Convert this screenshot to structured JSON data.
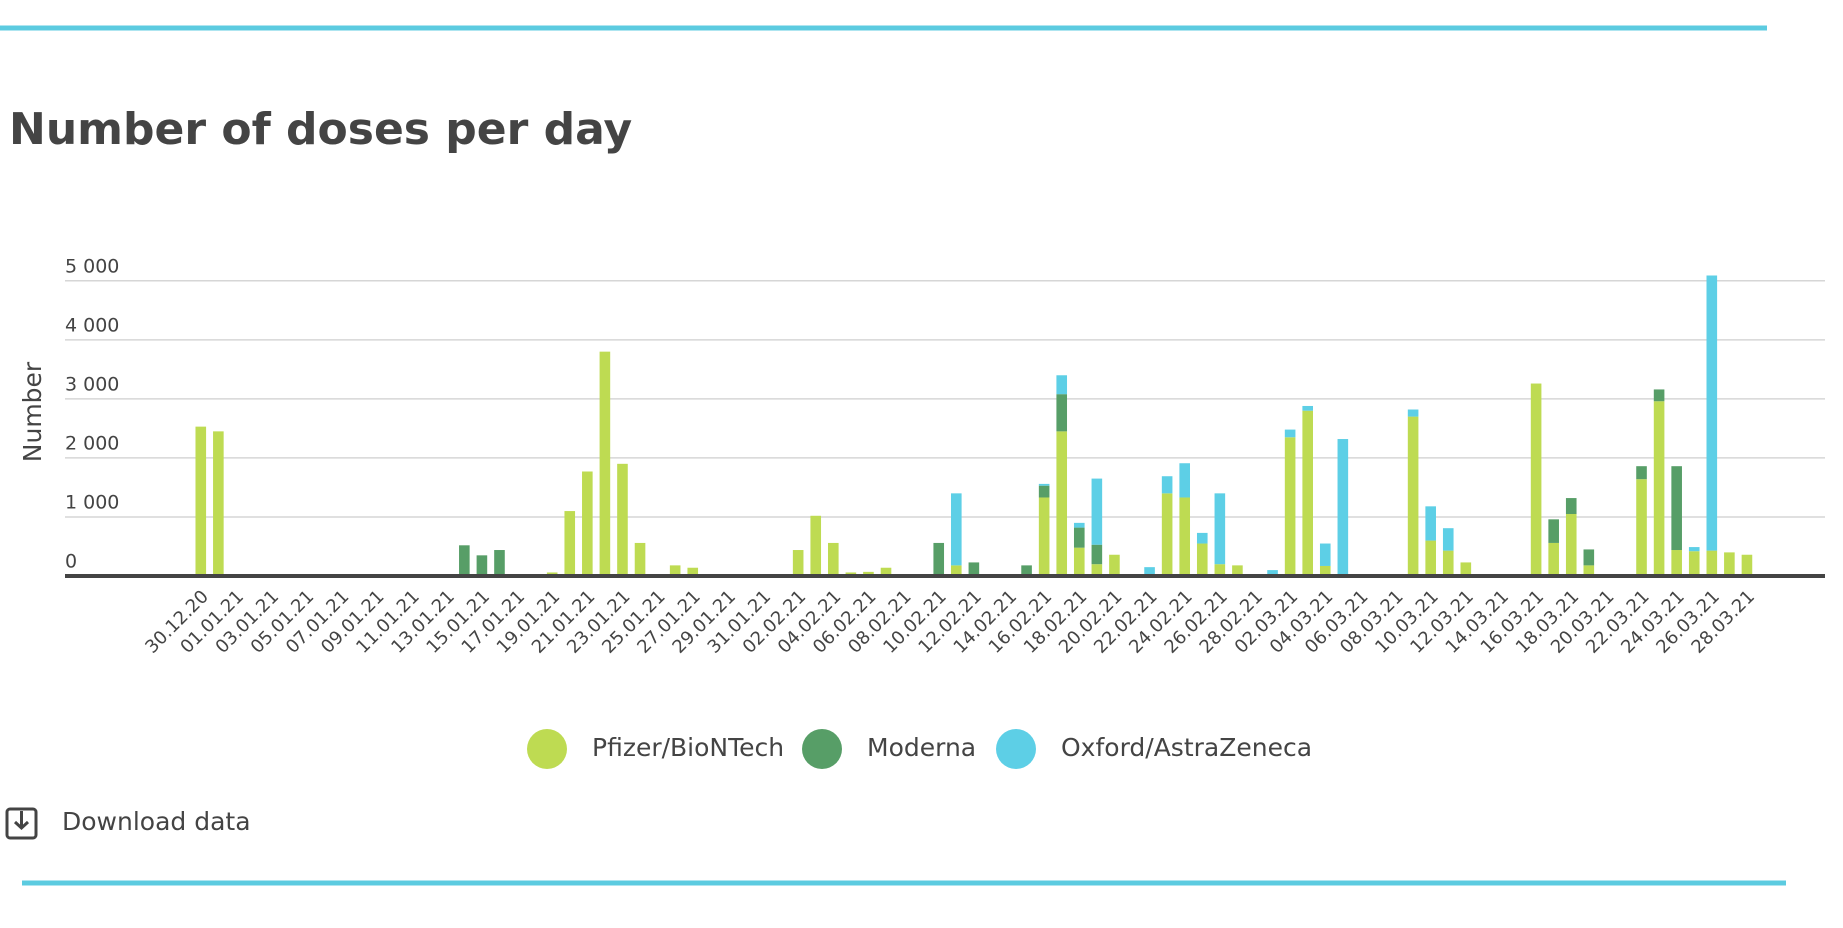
{
  "chart_data": {
    "type": "stacked_bar",
    "title": "Number of doses per day",
    "y_label": "Number",
    "download_link": "Download data",
    "categories": [
      "30.12.20",
      null,
      "01.01.21",
      null,
      "03.01.21",
      null,
      "05.01.21",
      null,
      "07.01.21",
      null,
      "09.01.21",
      null,
      "11.01.21",
      null,
      "13.01.21",
      null,
      "15.01.21",
      null,
      "17.01.21",
      null,
      "19.01.21",
      null,
      "21.01.21",
      null,
      "23.01.21",
      null,
      "25.01.21",
      null,
      "27.01.21",
      null,
      "29.01.21",
      null,
      "31.01.21",
      null,
      "02.02.21",
      null,
      "04.02.21",
      null,
      "06.02.21",
      null,
      "08.02.21",
      null,
      "10.02.21",
      null,
      "12.02.21",
      null,
      "14.02.21",
      null,
      "16.02.21",
      null,
      "18.02.21",
      null,
      "20.02.21",
      null,
      "22.02.21",
      null,
      "24.02.21",
      null,
      "26.02.21",
      null,
      "28.02.21",
      null,
      "02.03.21",
      null,
      "04.03.21",
      null,
      "06.03.21",
      null,
      "08.03.21",
      null,
      "10.03.21",
      null,
      "12.03.21",
      null,
      "14.03.21",
      null,
      "16.03.21",
      null,
      "18.03.21",
      null,
      "20.03.21",
      null,
      "22.03.21",
      null,
      "24.03.21",
      null,
      "26.03.21",
      null,
      "28.03.21"
    ],
    "series": [
      {
        "name": "Pfizer/BioNTech",
        "color": "#bedb52",
        "values": [
          2530,
          2450,
          0,
          0,
          0,
          0,
          0,
          0,
          0,
          0,
          0,
          0,
          0,
          0,
          0,
          0,
          0,
          0,
          0,
          0,
          60,
          1100,
          1770,
          3800,
          1900,
          560,
          0,
          180,
          140,
          0,
          0,
          0,
          0,
          0,
          440,
          1020,
          560,
          60,
          70,
          140,
          0,
          0,
          0,
          180,
          0,
          0,
          0,
          0,
          1330,
          2450,
          480,
          200,
          360,
          0,
          0,
          1400,
          1330,
          550,
          200,
          180,
          0,
          0,
          2350,
          2800,
          170,
          0,
          0,
          0,
          0,
          2700,
          600,
          430,
          230,
          0,
          0,
          0,
          3260,
          560,
          1050,
          180,
          0,
          0,
          1640,
          2960,
          440,
          420,
          430,
          400,
          360
        ]
      },
      {
        "name": "Moderna",
        "color": "#579e67",
        "values": [
          0,
          0,
          0,
          0,
          0,
          0,
          0,
          0,
          0,
          0,
          0,
          0,
          0,
          0,
          0,
          520,
          350,
          440,
          0,
          0,
          0,
          0,
          0,
          0,
          0,
          0,
          0,
          0,
          0,
          0,
          0,
          0,
          0,
          0,
          0,
          0,
          0,
          0,
          0,
          0,
          0,
          0,
          560,
          0,
          230,
          0,
          0,
          180,
          200,
          630,
          340,
          330,
          0,
          0,
          0,
          0,
          0,
          0,
          0,
          0,
          0,
          0,
          0,
          0,
          0,
          0,
          0,
          0,
          0,
          0,
          0,
          0,
          0,
          0,
          0,
          0,
          0,
          400,
          270,
          270,
          0,
          0,
          220,
          200,
          1420,
          0,
          0,
          0,
          0
        ]
      },
      {
        "name": "Oxford/AstraZeneca",
        "color": "#5dcfe6",
        "values": [
          0,
          0,
          0,
          0,
          0,
          0,
          0,
          0,
          0,
          0,
          0,
          0,
          0,
          0,
          0,
          0,
          0,
          0,
          0,
          0,
          0,
          0,
          0,
          0,
          0,
          0,
          0,
          0,
          0,
          0,
          0,
          0,
          0,
          0,
          0,
          0,
          0,
          0,
          0,
          0,
          0,
          0,
          0,
          1220,
          0,
          0,
          0,
          0,
          30,
          320,
          80,
          1120,
          0,
          0,
          150,
          290,
          580,
          180,
          1200,
          0,
          0,
          100,
          130,
          80,
          380,
          2320,
          0,
          0,
          0,
          120,
          580,
          380,
          0,
          0,
          0,
          0,
          0,
          0,
          0,
          0,
          0,
          0,
          0,
          0,
          0,
          70,
          4660,
          0,
          0
        ]
      }
    ],
    "ylim": [
      0,
      5200
    ],
    "yticks": [
      0,
      {
        "value": 1000,
        "label": "1 000"
      },
      {
        "value": 2000,
        "label": "2 000"
      },
      {
        "value": 3000,
        "label": "3 000"
      },
      {
        "value": 4000,
        "label": "4 000"
      },
      {
        "value": 5000,
        "label": "5 000"
      }
    ],
    "grid": true
  }
}
